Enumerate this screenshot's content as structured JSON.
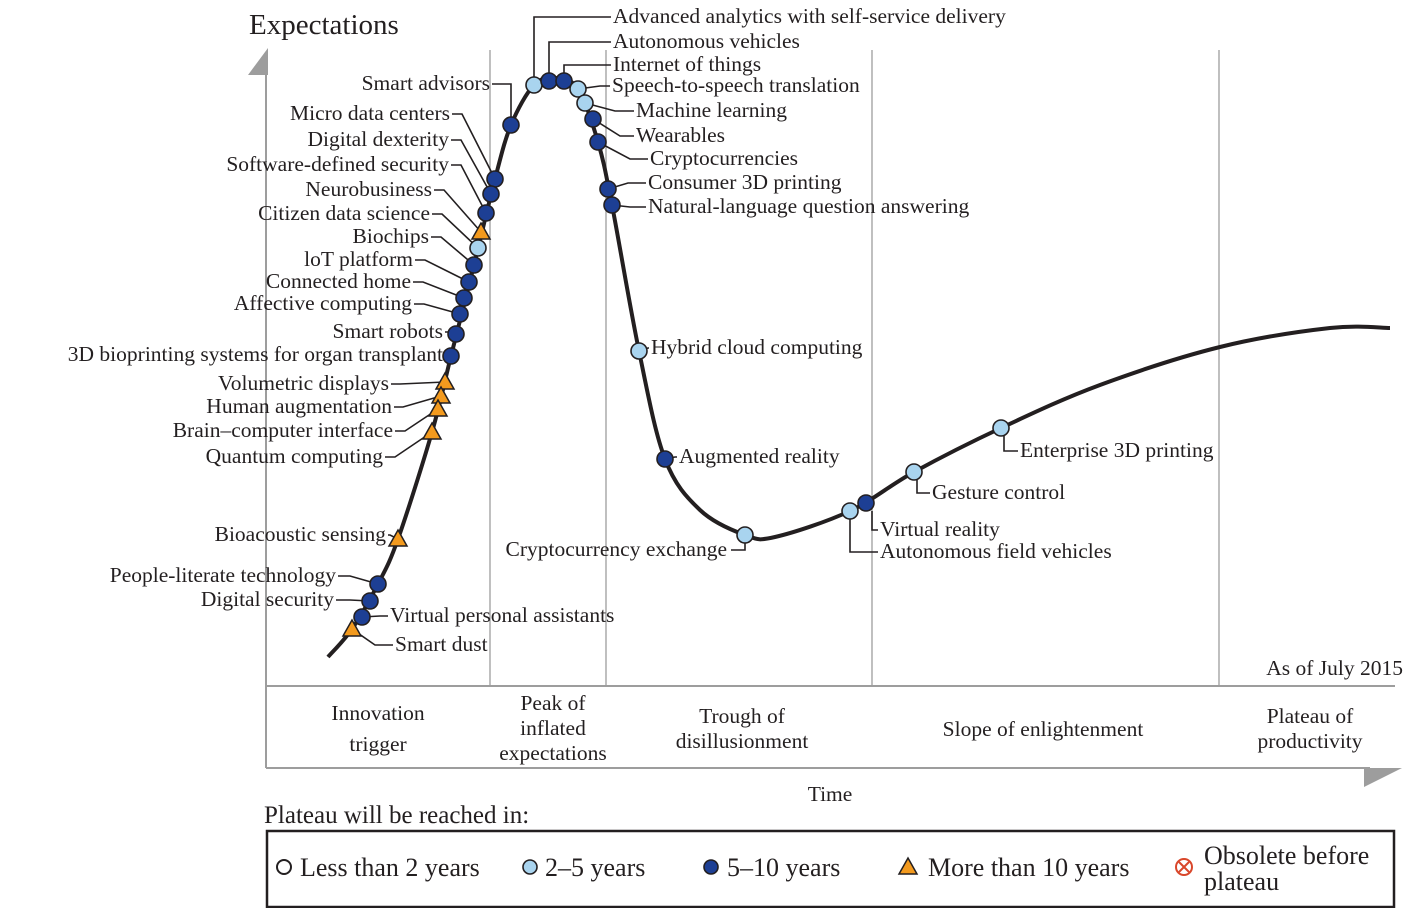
{
  "y_axis_label": "Expectations",
  "x_axis_label": "Time",
  "as_of": "As of July 2015",
  "phases": [
    {
      "lines": [
        "Innovation",
        "trigger"
      ]
    },
    {
      "lines": [
        "Peak of",
        "inflated",
        "expectations"
      ]
    },
    {
      "lines": [
        "Trough of",
        "disillusionment"
      ]
    },
    {
      "lines": [
        "Slope of enlightenment"
      ]
    },
    {
      "lines": [
        "Plateau of",
        "productivity"
      ]
    }
  ],
  "legend": {
    "title": "Plateau will be reached in:",
    "items": [
      {
        "label": "Less than 2 years",
        "marker": "circle-white"
      },
      {
        "label": "2–5 years",
        "marker": "circle-light-blue"
      },
      {
        "label": "5–10 years",
        "marker": "circle-dark-blue"
      },
      {
        "label": "More than 10 years",
        "marker": "triangle-orange"
      },
      {
        "label": "Obsolete before plateau",
        "lines": [
          "Obsolete before",
          "plateau"
        ],
        "marker": "crossed-circle-red"
      }
    ]
  },
  "colors": {
    "lt2": "#ffffff",
    "y2_5": "#a9d4ef",
    "y5_10": "#1d3f94",
    "gt10": "#f39a1e",
    "obsolete": "#d9472b",
    "curve": "#231f20",
    "axis": "#9d9d9d"
  },
  "technologies": [
    {
      "label": "Smart advisors",
      "category": "5-10"
    },
    {
      "label": "Micro data centers",
      "category": "5-10"
    },
    {
      "label": "Digital dexterity",
      "category": "5-10"
    },
    {
      "label": "Software-defined security",
      "category": "5-10"
    },
    {
      "label": "Neurobusiness",
      "category": ">10"
    },
    {
      "label": "Citizen data science",
      "category": "2-5"
    },
    {
      "label": "Biochips",
      "category": "5-10"
    },
    {
      "label": "loT platform",
      "category": "5-10"
    },
    {
      "label": "Connected home",
      "category": "5-10"
    },
    {
      "label": "Affective computing",
      "category": "5-10"
    },
    {
      "label": "Smart robots",
      "category": "5-10"
    },
    {
      "label": "3D bioprinting systems for organ transplant",
      "category": "5-10"
    },
    {
      "label": "Volumetric displays",
      "category": ">10"
    },
    {
      "label": "Human augmentation",
      "category": ">10"
    },
    {
      "label": "Brain–computer interface",
      "category": ">10"
    },
    {
      "label": "Quantum computing",
      "category": ">10"
    },
    {
      "label": "Bioacoustic sensing",
      "category": ">10"
    },
    {
      "label": "People-literate technology",
      "category": "5-10"
    },
    {
      "label": "Digital security",
      "category": "5-10"
    },
    {
      "label": "Virtual personal assistants",
      "category": "5-10"
    },
    {
      "label": "Smart dust",
      "category": ">10"
    },
    {
      "label": "Advanced analytics with self-service delivery",
      "category": "2-5"
    },
    {
      "label": "Autonomous vehicles",
      "category": "5-10"
    },
    {
      "label": "Internet of things",
      "category": "5-10"
    },
    {
      "label": "Speech-to-speech translation",
      "category": "2-5"
    },
    {
      "label": "Machine learning",
      "category": "2-5"
    },
    {
      "label": "Wearables",
      "category": "5-10"
    },
    {
      "label": "Cryptocurrencies",
      "category": "5-10"
    },
    {
      "label": "Consumer 3D printing",
      "category": "5-10"
    },
    {
      "label": "Natural-language question answering",
      "category": "5-10"
    },
    {
      "label": "Hybrid cloud computing",
      "category": "2-5"
    },
    {
      "label": "Augmented reality",
      "category": "5-10"
    },
    {
      "label": "Cryptocurrency exchange",
      "category": "2-5"
    },
    {
      "label": "Virtual reality",
      "category": "5-10"
    },
    {
      "label": "Autonomous field vehicles",
      "category": "2-5"
    },
    {
      "label": "Gesture control",
      "category": "2-5"
    },
    {
      "label": "Enterprise 3D printing",
      "category": "2-5"
    }
  ]
}
